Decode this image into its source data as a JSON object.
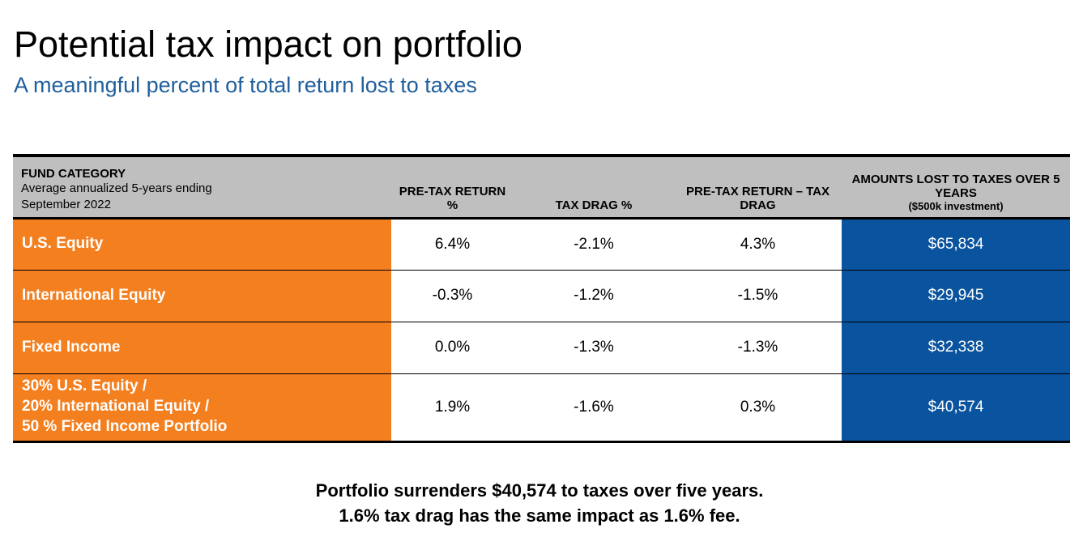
{
  "title": "Potential tax impact on portfolio",
  "subtitle": "A meaningful percent of total return lost to taxes",
  "table": {
    "headers": {
      "category_title": "FUND CATEGORY",
      "category_sub1": "Average annualized 5-years ending",
      "category_sub2": "September 2022",
      "pretax": "PRE-TAX RETURN %",
      "drag": "TAX DRAG %",
      "net": "PRE-TAX RETURN – TAX DRAG",
      "lost": "AMOUNTS LOST TO TAXES OVER 5 YEARS",
      "lost_sub": "($500k investment)"
    },
    "rows": [
      {
        "category_lines": [
          "U.S. Equity"
        ],
        "pretax": "6.4%",
        "drag": "-2.1%",
        "net": "4.3%",
        "lost": "$65,834"
      },
      {
        "category_lines": [
          "International Equity"
        ],
        "pretax": "-0.3%",
        "drag": "-1.2%",
        "net": "-1.5%",
        "lost": "$29,945"
      },
      {
        "category_lines": [
          "Fixed Income"
        ],
        "pretax": "0.0%",
        "drag": "-1.3%",
        "net": "-1.3%",
        "lost": "$32,338"
      },
      {
        "category_lines": [
          "30% U.S. Equity /",
          "20% International Equity /",
          "50 % Fixed Income Portfolio"
        ],
        "pretax": "1.9%",
        "drag": "-1.6%",
        "net": "0.3%",
        "lost": "$40,574"
      }
    ]
  },
  "footnote": {
    "line1": "Portfolio surrenders $40,574 to taxes over five years.",
    "line2": "1.6% tax drag has the same impact as 1.6% fee."
  },
  "colors": {
    "subtitle": "#1f5f9c",
    "category_bg": "#f47f1f",
    "lost_bg": "#0a539e",
    "header_bg": "#bfbfbf"
  }
}
